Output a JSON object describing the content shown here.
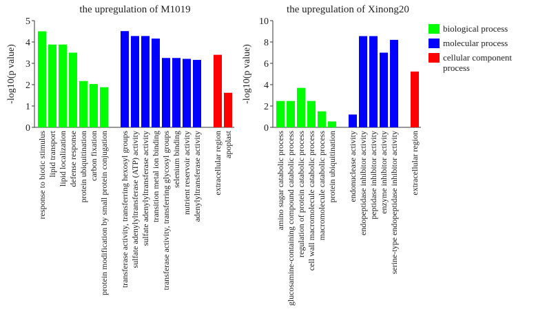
{
  "chart_data": [
    {
      "type": "bar",
      "title": "the upregulation of M1019",
      "ylabel": "-log10(p value)",
      "xlabel": "",
      "ylim": [
        0,
        5
      ],
      "yticks": [
        "0",
        "1",
        "2",
        "3",
        "4",
        "5"
      ],
      "groups": [
        {
          "category": "biological process",
          "labels": [
            "response to biotic stimulus",
            "lipid transport",
            "lipid localization",
            "defense response",
            "protein ubiquitination",
            "carbon fixation",
            "protein modification by small protein conjugation"
          ],
          "values": [
            4.5,
            3.88,
            3.88,
            3.5,
            2.17,
            2.03,
            1.88
          ]
        },
        {
          "category": "molecular process",
          "labels": [
            "transferase activity, transferring hexosyl groups",
            "sulfate adenylyltransferase (ATP) activity",
            "sulfate adenylyltransferase activity",
            "transition metal ion binding",
            "transferase activity, transferring glycosyl groups",
            "selenium binding",
            "nutrient reservoir activity",
            "adenylyltransferase activity"
          ],
          "values": [
            4.51,
            4.28,
            4.28,
            4.16,
            3.25,
            3.25,
            3.21,
            3.16
          ]
        },
        {
          "category": "cellular component process",
          "labels": [
            "extracellular region",
            "apoplast"
          ],
          "values": [
            3.4,
            1.62
          ]
        }
      ]
    },
    {
      "type": "bar",
      "title": "the upregulation of Xinong20",
      "ylabel": "-log10(p value)",
      "xlabel": "",
      "ylim": [
        0,
        10
      ],
      "yticks": [
        "0",
        "2",
        "4",
        "6",
        "8",
        "10"
      ],
      "groups": [
        {
          "category": "biological process",
          "labels": [
            "amino sugar catabolic process",
            "glucosamine-containing compound catabolic process",
            "regulation of protein catabolic process",
            "cell wall macromolecule catabolic process",
            "macromolecule catabolic process",
            "protein ubiquitination"
          ],
          "values": [
            2.47,
            2.47,
            3.7,
            2.47,
            1.5,
            0.55
          ]
        },
        {
          "category": "molecular process",
          "labels": [
            "endonuclease activity",
            "endopeptidase inhibitor activity",
            "peptidase inhibitor activity",
            "enzyme inhibitor activity",
            "serine-type endopeptidase inhibitor activity"
          ],
          "values": [
            1.2,
            8.55,
            8.55,
            7.0,
            8.2
          ]
        },
        {
          "category": "cellular component process",
          "labels": [
            "extracellular region"
          ],
          "values": [
            5.23
          ]
        }
      ]
    }
  ],
  "legend": {
    "placement": "top-right",
    "items": [
      {
        "label": "biological process",
        "color": "#00ff00"
      },
      {
        "label": "molecular process",
        "color": "#0000ff"
      },
      {
        "label": "cellular component process",
        "color": "#ff0000"
      }
    ]
  }
}
